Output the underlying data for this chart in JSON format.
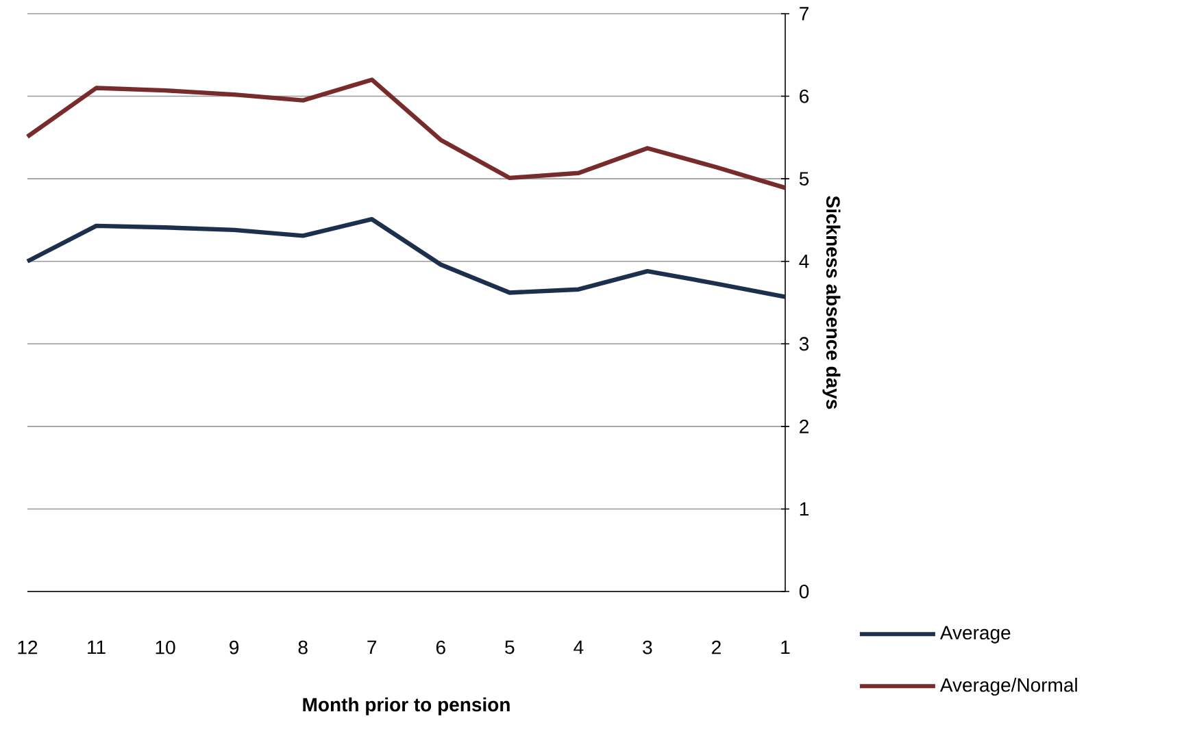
{
  "chart_data": {
    "type": "line",
    "xlabel": "Month prior to pension",
    "ylabel": "Sickness absence days",
    "categories": [
      "12",
      "11",
      "10",
      "9",
      "8",
      "7",
      "6",
      "5",
      "4",
      "3",
      "2",
      "1"
    ],
    "series": [
      {
        "name": "Average",
        "color": "#1c2f4d",
        "values": [
          4.0,
          4.43,
          4.41,
          4.38,
          4.31,
          4.51,
          3.96,
          3.62,
          3.66,
          3.88,
          3.73,
          3.57
        ]
      },
      {
        "name": "Average/Normal",
        "color": "#772b2b",
        "values": [
          5.51,
          6.1,
          6.07,
          6.02,
          5.95,
          6.2,
          5.47,
          5.01,
          5.07,
          5.37,
          5.14,
          4.89
        ]
      }
    ],
    "ylim": [
      0,
      7
    ],
    "yticks": [
      0,
      1,
      2,
      3,
      4,
      5,
      6,
      7
    ],
    "grid": "y",
    "legend": "bottom right"
  }
}
